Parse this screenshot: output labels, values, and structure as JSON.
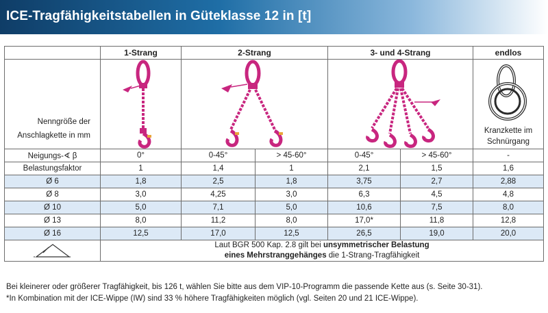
{
  "title": "ICE-Tragfähigkeitstabellen in Güteklasse 12 in [t]",
  "headers": {
    "strang1": "1-Strang",
    "strang2": "2-Strang",
    "strang34": "3- und 4-Strang",
    "endlos": "endlos"
  },
  "nominal_label_1": "Nenngröße der",
  "nominal_label_2": "Anschlagkette in mm",
  "endless_caption_1": "Kranzkette im",
  "endless_caption_2": "Schnürgang",
  "angle_row": {
    "label": "Neigungs-∢ β",
    "values": [
      "0°",
      "0-45°",
      "> 45-60°",
      "0-45°",
      "> 45-60°",
      "-"
    ]
  },
  "factor_row": {
    "label": "Belastungsfaktor",
    "values": [
      "1",
      "1,4",
      "1",
      "2,1",
      "1,5",
      "1,6"
    ]
  },
  "rows": [
    {
      "size": "Ø  6",
      "values": [
        "1,8",
        "2,5",
        "1,8",
        "3,75",
        "2,7",
        "2,88"
      ]
    },
    {
      "size": "Ø  8",
      "values": [
        "3,0",
        "4,25",
        "3,0",
        "6,3",
        "4,5",
        "4,8"
      ]
    },
    {
      "size": "Ø 10",
      "values": [
        "5,0",
        "7,1",
        "5,0",
        "10,6",
        "7,5",
        "8,0"
      ]
    },
    {
      "size": "Ø 13",
      "values": [
        "8,0",
        "11,2",
        "8,0",
        "17,0*",
        "11,8",
        "12,8"
      ]
    },
    {
      "size": "Ø 16",
      "values": [
        "12,5",
        "17,0",
        "12,5",
        "26,5",
        "19,0",
        "20,0"
      ]
    }
  ],
  "note_line1_a": "Laut BGR 500 Kap. 2.8 gilt bei ",
  "note_line1_b": "unsymmetrischer Belastung",
  "note_line2_a": "eines Mehrstranggehänges",
  "note_line2_b": " die 1-Strang-Tragfähigkeit",
  "footnote1": "Bei kleinerer oder größerer Tragfähigkeit, bis 126 t, wählen Sie bitte aus dem VIP-10-Programm die passende Kette aus (s. Seite 30-31).",
  "footnote2": "*In Kombination mit der ICE-Wippe (IW) sind 33 % höhere Tragfähigkeiten möglich (vgl. Seiten 20 und 21 ICE-Wippe).",
  "colors": {
    "chain": "#c8267f",
    "highlight_row": "#dce9f6",
    "banner": "#1f6ea6"
  },
  "icons": [
    "chain-sling-1-leg-icon",
    "chain-sling-2-leg-icon",
    "chain-sling-4-leg-icon",
    "endless-chain-choke-icon",
    "asymmetric-load-icon"
  ]
}
